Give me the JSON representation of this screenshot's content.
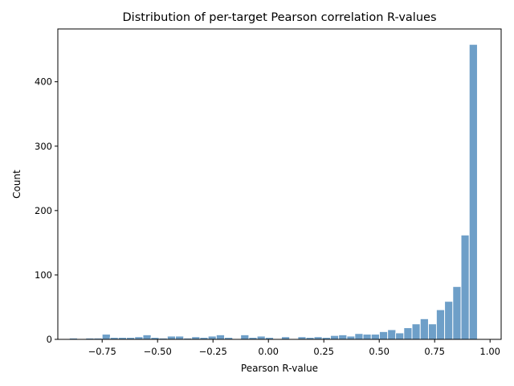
{
  "chart_data": {
    "type": "bar",
    "title": "Distribution of per-target Pearson correlation R-values",
    "xlabel": "Pearson R-value",
    "ylabel": "Count",
    "xlim": [
      -0.95,
      1.05
    ],
    "ylim": [
      0,
      482
    ],
    "grid": false,
    "legend": "none",
    "bar_color": "#6e9fc8",
    "bin_width": 0.0368,
    "x_ticks": [
      {
        "value": -0.75,
        "label": "−0.75"
      },
      {
        "value": -0.5,
        "label": "−0.50"
      },
      {
        "value": -0.25,
        "label": "−0.25"
      },
      {
        "value": 0.0,
        "label": "0.00"
      },
      {
        "value": 0.25,
        "label": "0.25"
      },
      {
        "value": 0.5,
        "label": "0.50"
      },
      {
        "value": 0.75,
        "label": "0.75"
      },
      {
        "value": 1.0,
        "label": "1.00"
      }
    ],
    "y_ticks": [
      {
        "value": 0,
        "label": "0"
      },
      {
        "value": 100,
        "label": "100"
      },
      {
        "value": 200,
        "label": "200"
      },
      {
        "value": 300,
        "label": "300"
      },
      {
        "value": 400,
        "label": "400"
      }
    ],
    "bins": [
      {
        "x": -0.898,
        "count": 2
      },
      {
        "x": -0.861,
        "count": 1
      },
      {
        "x": -0.824,
        "count": 2
      },
      {
        "x": -0.787,
        "count": 2
      },
      {
        "x": -0.75,
        "count": 8
      },
      {
        "x": -0.714,
        "count": 3
      },
      {
        "x": -0.677,
        "count": 3
      },
      {
        "x": -0.64,
        "count": 3
      },
      {
        "x": -0.603,
        "count": 4
      },
      {
        "x": -0.566,
        "count": 7
      },
      {
        "x": -0.53,
        "count": 3
      },
      {
        "x": -0.493,
        "count": 2
      },
      {
        "x": -0.456,
        "count": 5
      },
      {
        "x": -0.419,
        "count": 5
      },
      {
        "x": -0.382,
        "count": 2
      },
      {
        "x": -0.346,
        "count": 4
      },
      {
        "x": -0.309,
        "count": 3
      },
      {
        "x": -0.272,
        "count": 5
      },
      {
        "x": -0.235,
        "count": 7
      },
      {
        "x": -0.198,
        "count": 3
      },
      {
        "x": -0.162,
        "count": 0
      },
      {
        "x": -0.125,
        "count": 7
      },
      {
        "x": -0.088,
        "count": 3
      },
      {
        "x": -0.051,
        "count": 5
      },
      {
        "x": -0.014,
        "count": 3
      },
      {
        "x": 0.022,
        "count": 0
      },
      {
        "x": 0.059,
        "count": 4
      },
      {
        "x": 0.096,
        "count": 1
      },
      {
        "x": 0.133,
        "count": 4
      },
      {
        "x": 0.17,
        "count": 3
      },
      {
        "x": 0.206,
        "count": 4
      },
      {
        "x": 0.243,
        "count": 3
      },
      {
        "x": 0.28,
        "count": 6
      },
      {
        "x": 0.317,
        "count": 7
      },
      {
        "x": 0.354,
        "count": 5
      },
      {
        "x": 0.39,
        "count": 9
      },
      {
        "x": 0.427,
        "count": 8
      },
      {
        "x": 0.464,
        "count": 8
      },
      {
        "x": 0.501,
        "count": 12
      },
      {
        "x": 0.538,
        "count": 15
      },
      {
        "x": 0.574,
        "count": 10
      },
      {
        "x": 0.611,
        "count": 18
      },
      {
        "x": 0.648,
        "count": 24
      },
      {
        "x": 0.685,
        "count": 32
      },
      {
        "x": 0.722,
        "count": 24
      },
      {
        "x": 0.758,
        "count": 46
      },
      {
        "x": 0.795,
        "count": 59
      },
      {
        "x": 0.832,
        "count": 82
      },
      {
        "x": 0.869,
        "count": 162
      },
      {
        "x": 0.906,
        "count": 458
      }
    ]
  }
}
